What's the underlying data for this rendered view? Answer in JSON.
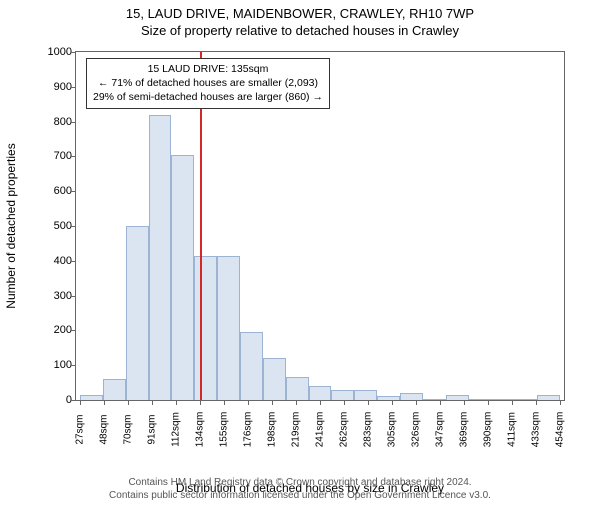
{
  "title_line1": "15, LAUD DRIVE, MAIDENBOWER, CRAWLEY, RH10 7WP",
  "title_line2": "Size of property relative to detached houses in Crawley",
  "ylabel": "Number of detached properties",
  "xlabel": "Distribution of detached houses by size in Crawley",
  "chart": {
    "type": "histogram",
    "x_start": 27,
    "x_step": 21.35,
    "x_count": 21,
    "x_suffix": "sqm",
    "ylim": [
      0,
      1000
    ],
    "ytick_step": 100,
    "bar_values": [
      15,
      60,
      500,
      820,
      705,
      415,
      415,
      195,
      120,
      65,
      40,
      30,
      30,
      12,
      20,
      0,
      15,
      0,
      0,
      0,
      15
    ],
    "bar_fill": "#dbe5f1",
    "bar_stroke": "#9db3d4",
    "axis_color": "#666666",
    "label_fontsize": 12,
    "tick_fontsize": 10,
    "reference_line": {
      "x_value": 135,
      "color": "#d62728",
      "width": 2
    },
    "annotation": {
      "line1": "15 LAUD DRIVE: 135sqm",
      "line2": "← 71% of detached houses are smaller (2,093)",
      "line3": "29% of semi-detached houses are larger (860) →"
    }
  },
  "footer_line1": "Contains HM Land Registry data © Crown copyright and database right 2024.",
  "footer_line2": "Contains public sector information licensed under the Open Government Licence v3.0."
}
